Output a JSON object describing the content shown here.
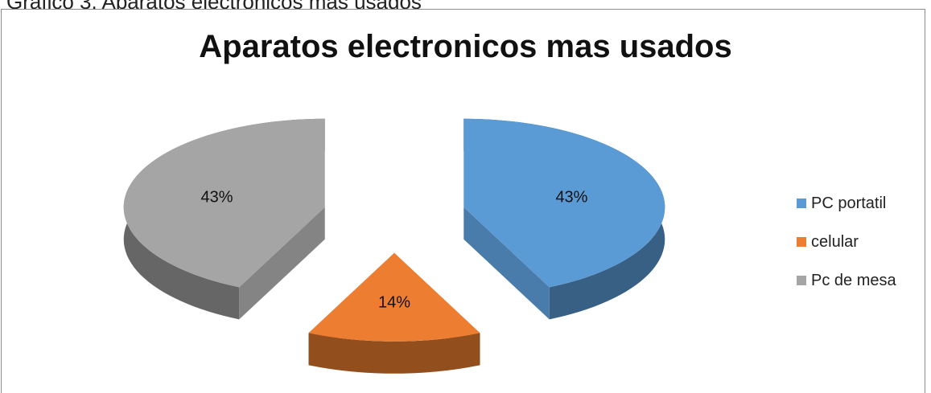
{
  "caption": "Grafico 3. Aparatos electronicos mas usados",
  "chart_data": {
    "type": "pie",
    "title": "Aparatos electronicos mas usados",
    "categories": [
      "PC portatil",
      "celular",
      "Pc de mesa"
    ],
    "values": [
      43,
      14,
      43
    ],
    "labels": [
      "43%",
      "14%",
      "43%"
    ],
    "colors": [
      "#5B9BD5",
      "#ED7D31",
      "#A5A5A5"
    ],
    "exploded": true,
    "three_d": true,
    "legend_position": "right"
  }
}
